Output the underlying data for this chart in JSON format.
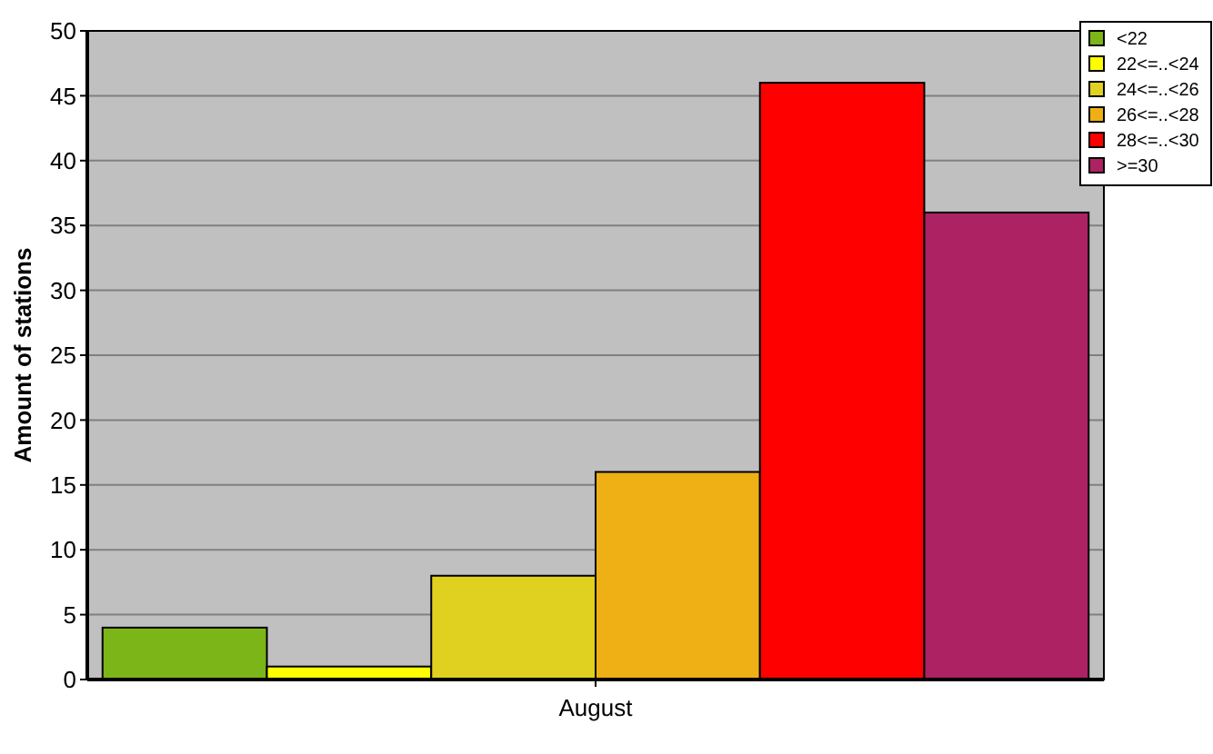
{
  "chart_data": {
    "type": "bar",
    "ylabel": "Amount of stations",
    "categories": [
      "August"
    ],
    "series": [
      {
        "name": "<22",
        "color": "#7cb518",
        "values": [
          4
        ]
      },
      {
        "name": "22<=..<24",
        "color": "#ffff00",
        "values": [
          1
        ]
      },
      {
        "name": "24<=..<26",
        "color": "#e0d020",
        "values": [
          8
        ]
      },
      {
        "name": "26<=..<28",
        "color": "#eeb014",
        "values": [
          16
        ]
      },
      {
        "name": "28<=..<30",
        "color": "#ff0000",
        "values": [
          46
        ]
      },
      {
        "name": ">=30",
        "color": "#ac2262",
        "values": [
          36
        ]
      }
    ],
    "ylim": [
      0,
      50
    ],
    "yticks": [
      0,
      5,
      10,
      15,
      20,
      25,
      30,
      35,
      40,
      45,
      50
    ],
    "grid": "y",
    "legend": "top right"
  }
}
